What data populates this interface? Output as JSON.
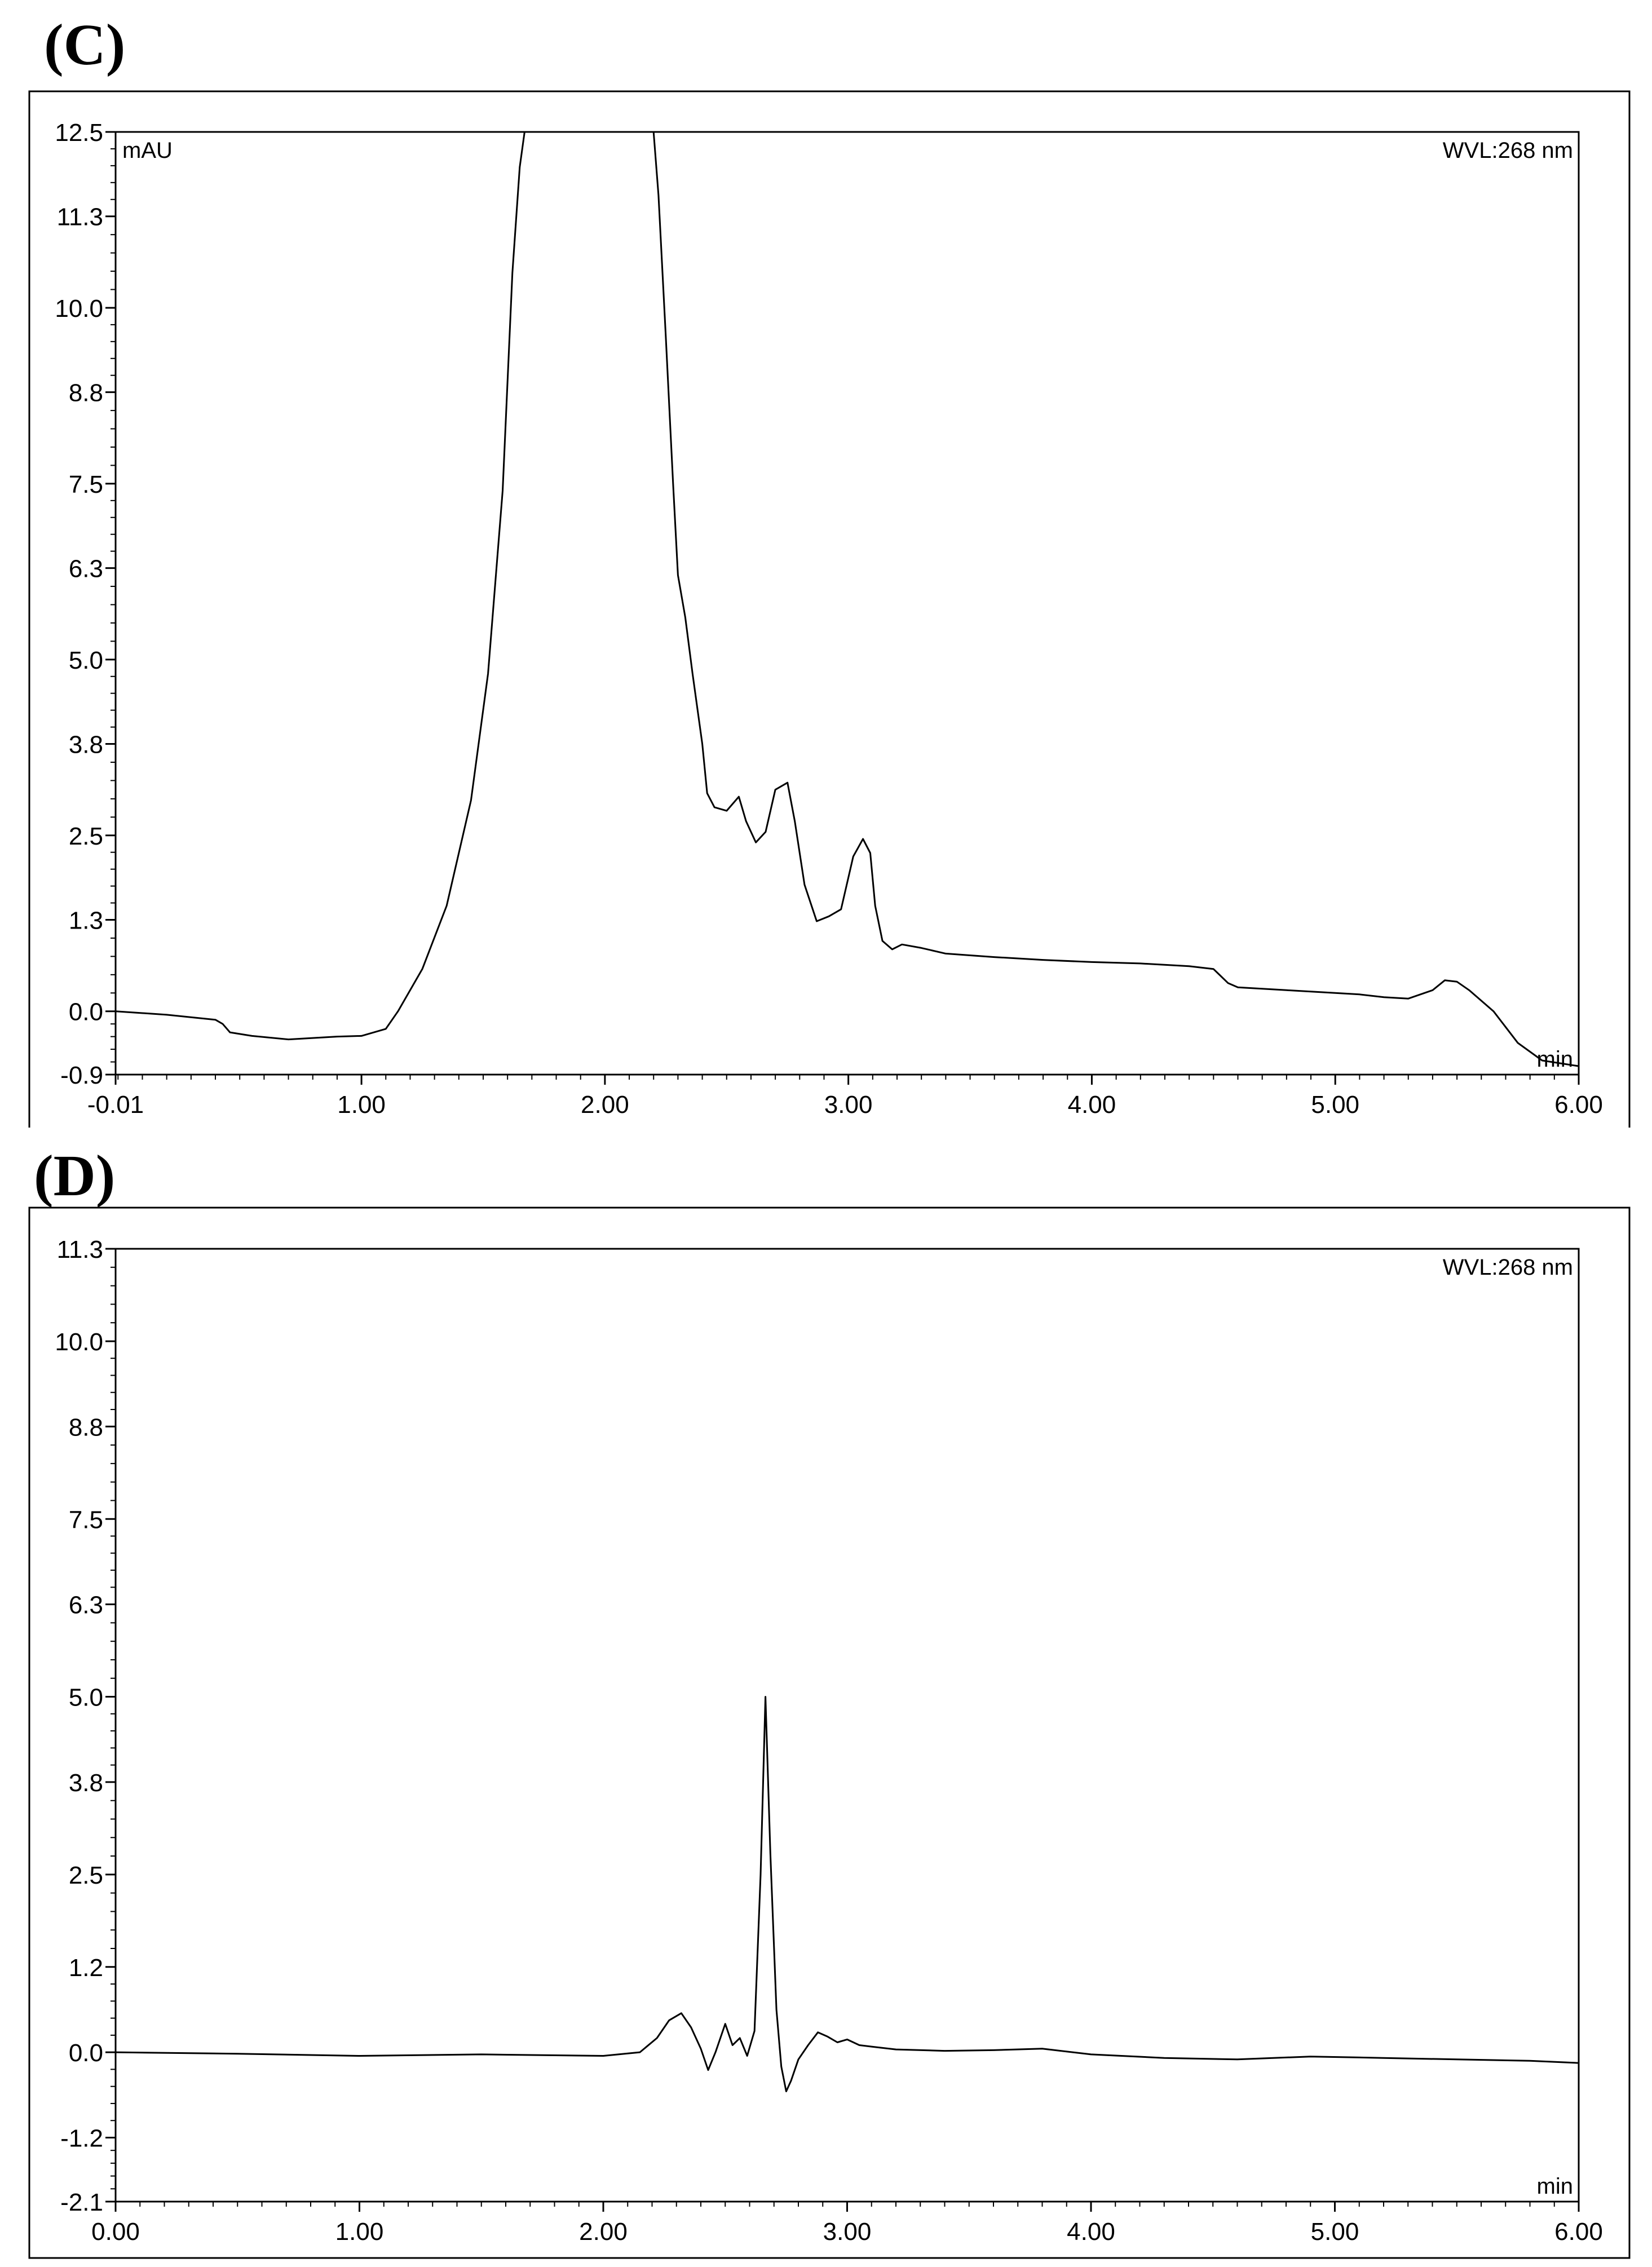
{
  "panels": [
    {
      "label": "(C)",
      "chart_data": {
        "type": "line",
        "title": "",
        "ylabel": "mAU",
        "xlabel": "min",
        "annotation": "WVL:268 nm",
        "xlim": [
          -0.01,
          6.0
        ],
        "ylim": [
          -0.9,
          12.5
        ],
        "x_ticks": [
          -0.01,
          1.0,
          2.0,
          3.0,
          4.0,
          5.0,
          6.0
        ],
        "x_tick_labels": [
          "-0.01",
          "1.00",
          "2.00",
          "3.00",
          "4.00",
          "5.00",
          "6.00"
        ],
        "y_ticks": [
          12.5,
          11.3,
          10.0,
          8.8,
          7.5,
          6.3,
          5.0,
          3.8,
          2.5,
          1.3,
          0.0,
          -0.9
        ],
        "y_tick_labels": [
          "12.5",
          "11.3",
          "10.0",
          "8.8",
          "7.5",
          "6.3",
          "5.0",
          "3.8",
          "2.5",
          "1.3",
          "0.0",
          "-0.9"
        ],
        "grid": false,
        "series": [
          {
            "x": [
              -0.01,
              0.2,
              0.4,
              0.43,
              0.46,
              0.55,
              0.7,
              0.9,
              1.0,
              1.1,
              1.15,
              1.25,
              1.35,
              1.45,
              1.52,
              1.58,
              1.62,
              1.65,
              1.67,
              2.2,
              2.22,
              2.25,
              2.28,
              2.3,
              2.33,
              2.36,
              2.4,
              2.42,
              2.45,
              2.5,
              2.55,
              2.58,
              2.62,
              2.66,
              2.7,
              2.75,
              2.78,
              2.82,
              2.87,
              2.92,
              2.97,
              3.02,
              3.06,
              3.09,
              3.11,
              3.14,
              3.18,
              3.22,
              3.3,
              3.4,
              3.6,
              3.8,
              4.0,
              4.2,
              4.4,
              4.5,
              4.56,
              4.6,
              4.7,
              4.8,
              5.0,
              5.1,
              5.2,
              5.3,
              5.4,
              5.45,
              5.5,
              5.55,
              5.65,
              5.75,
              5.85,
              6.0
            ],
            "y": [
              0.0,
              -0.05,
              -0.12,
              -0.18,
              -0.3,
              -0.35,
              -0.4,
              -0.36,
              -0.35,
              -0.25,
              0.0,
              0.6,
              1.5,
              3.0,
              4.8,
              7.4,
              10.5,
              12.0,
              12.5,
              12.5,
              11.6,
              9.6,
              7.5,
              6.2,
              5.6,
              4.8,
              3.8,
              3.1,
              2.9,
              2.85,
              3.05,
              2.7,
              2.4,
              2.55,
              3.15,
              3.25,
              2.7,
              1.8,
              1.28,
              1.35,
              1.45,
              2.2,
              2.45,
              2.25,
              1.5,
              1.0,
              0.88,
              0.95,
              0.9,
              0.82,
              0.77,
              0.73,
              0.7,
              0.68,
              0.64,
              0.6,
              0.4,
              0.34,
              0.32,
              0.3,
              0.26,
              0.24,
              0.2,
              0.18,
              0.3,
              0.44,
              0.42,
              0.3,
              0.0,
              -0.45,
              -0.7,
              -0.78
            ]
          }
        ]
      }
    },
    {
      "label": "(D)",
      "chart_data": {
        "type": "line",
        "title": "",
        "ylabel": "",
        "xlabel": "min",
        "annotation": "WVL:268 nm",
        "xlim": [
          0.0,
          6.0
        ],
        "ylim": [
          -2.1,
          11.3
        ],
        "x_ticks": [
          0.0,
          1.0,
          2.0,
          3.0,
          4.0,
          5.0,
          6.0
        ],
        "x_tick_labels": [
          "0.00",
          "1.00",
          "2.00",
          "3.00",
          "4.00",
          "5.00",
          "6.00"
        ],
        "y_ticks": [
          11.3,
          10.0,
          8.8,
          7.5,
          6.3,
          5.0,
          3.8,
          2.5,
          1.2,
          0.0,
          -1.2,
          -2.1
        ],
        "y_tick_labels": [
          "11.3",
          "10.0",
          "8.8",
          "7.5",
          "6.3",
          "5.0",
          "3.8",
          "2.5",
          "1.2",
          "0.0",
          "-1.2",
          "-2.1"
        ],
        "grid": false,
        "series": [
          {
            "x": [
              0.0,
              0.5,
              1.0,
              1.5,
              2.0,
              2.15,
              2.22,
              2.27,
              2.32,
              2.36,
              2.4,
              2.43,
              2.46,
              2.5,
              2.53,
              2.56,
              2.59,
              2.62,
              2.645,
              2.665,
              2.685,
              2.71,
              2.73,
              2.75,
              2.77,
              2.8,
              2.84,
              2.88,
              2.92,
              2.96,
              3.0,
              3.05,
              3.1,
              3.2,
              3.4,
              3.6,
              3.8,
              4.0,
              4.3,
              4.6,
              4.9,
              5.2,
              5.5,
              5.8,
              6.0
            ],
            "y": [
              0.0,
              -0.02,
              -0.05,
              -0.03,
              -0.05,
              0.0,
              0.2,
              0.45,
              0.55,
              0.35,
              0.05,
              -0.25,
              0.0,
              0.4,
              0.1,
              0.2,
              -0.05,
              0.3,
              2.5,
              5.0,
              2.8,
              0.6,
              -0.2,
              -0.55,
              -0.4,
              -0.1,
              0.1,
              0.28,
              0.22,
              0.14,
              0.18,
              0.1,
              0.08,
              0.04,
              0.02,
              0.03,
              0.05,
              -0.03,
              -0.08,
              -0.1,
              -0.06,
              -0.08,
              -0.1,
              -0.12,
              -0.15
            ]
          }
        ]
      }
    }
  ]
}
